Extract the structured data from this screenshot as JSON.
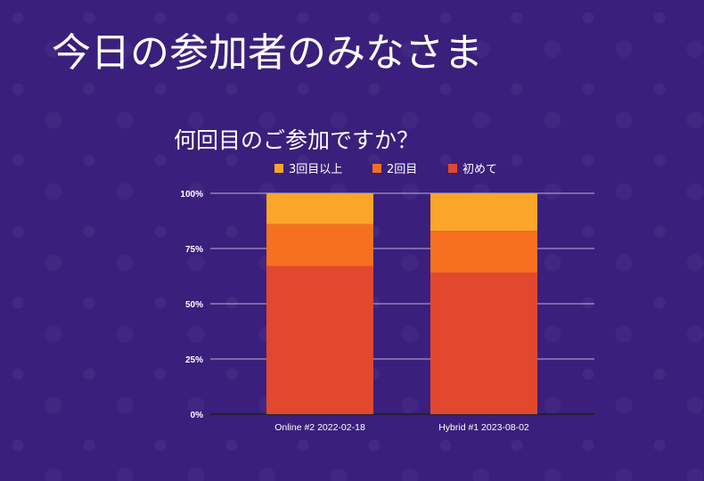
{
  "slide": {
    "title": "今日の参加者のみなさま"
  },
  "colors": {
    "background": "#3a1f7c",
    "gridline": "#b9b3cf",
    "baseline": "#1e1e1e"
  },
  "chart_data": {
    "type": "bar",
    "stacked": true,
    "title": "何回目のご参加ですか？",
    "categories": [
      "Online #2 2022-02-18",
      "Hybrid #1 2023-08-02"
    ],
    "series": [
      {
        "name": "初めて",
        "values": [
          67,
          64
        ],
        "color": "#e2482d"
      },
      {
        "name": "2回目",
        "values": [
          19,
          19
        ],
        "color": "#f7701f"
      },
      {
        "name": "3回目以上",
        "values": [
          14,
          17
        ],
        "color": "#fba529"
      }
    ],
    "legend_order": [
      "3回目以上",
      "2回目",
      "初めて"
    ],
    "legend_position": "top",
    "yticks": [
      "0%",
      "25%",
      "50%",
      "75%",
      "100%"
    ],
    "ylim": [
      0,
      100
    ],
    "grid": true,
    "xlabel": "",
    "ylabel": ""
  }
}
